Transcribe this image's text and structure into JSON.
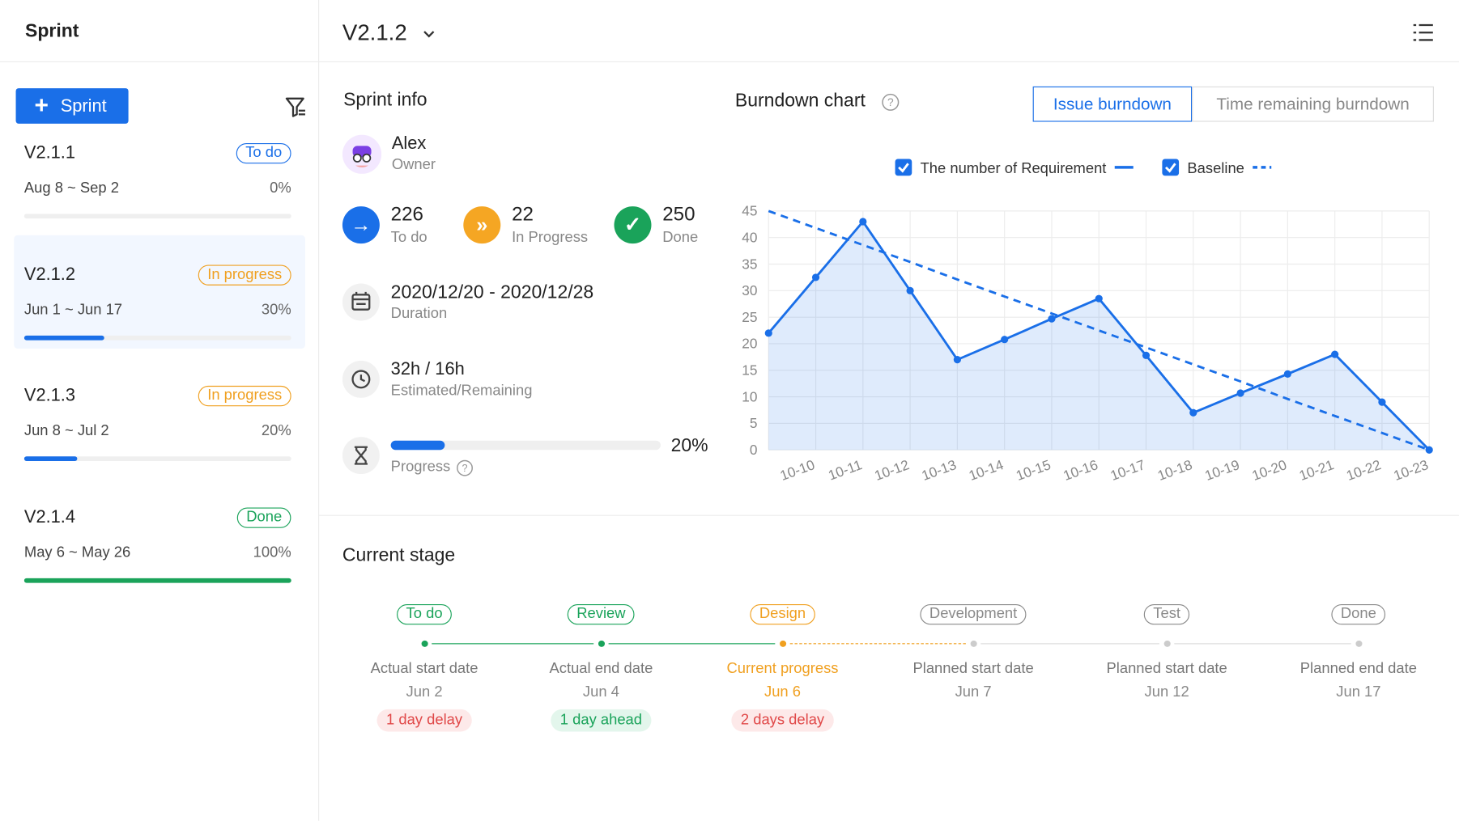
{
  "header": {
    "sidebar_title": "Sprint",
    "version": "V2.1.2"
  },
  "sidebar": {
    "new_button": "Sprint",
    "sprints": [
      {
        "name": "V2.1.1",
        "status": "To do",
        "status_color": "#1a6fe8",
        "dates": "Aug 8 ~ Sep 2",
        "progress": 0,
        "progress_label": "0%",
        "color": "#1a6fe8"
      },
      {
        "name": "V2.1.2",
        "status": "In progress",
        "status_color": "#f0a020",
        "dates": "Jun 1 ~ Jun 17",
        "progress": 30,
        "progress_label": "30%",
        "color": "#1a6fe8"
      },
      {
        "name": "V2.1.3",
        "status": "In progress",
        "status_color": "#f0a020",
        "dates": "Jun 8 ~ Jul 2",
        "progress": 20,
        "progress_label": "20%",
        "color": "#1a6fe8"
      },
      {
        "name": "V2.1.4",
        "status": "Done",
        "status_color": "#1aa35a",
        "dates": "May 6 ~ May 26",
        "progress": 100,
        "progress_label": "100%",
        "color": "#1aa35a"
      }
    ]
  },
  "sprint_info": {
    "title": "Sprint info",
    "owner_name": "Alex",
    "owner_role": "Owner",
    "stats": [
      {
        "count": 226,
        "label": "To do",
        "color": "#1a6fe8"
      },
      {
        "count": 22,
        "label": "In Progress",
        "color": "#f5a623"
      },
      {
        "count": 250,
        "label": "Done",
        "color": "#1aa35a"
      }
    ],
    "duration": "2020/12/20 - 2020/12/28",
    "duration_label": "Duration",
    "hours": "32h / 16h",
    "hours_label": "Estimated/Remaining",
    "progress": 20,
    "progress_label": "20%",
    "progress_text": "Progress"
  },
  "chart_data": {
    "type": "line",
    "title": "Burndown chart",
    "tabs": [
      "Issue burndown",
      "Time remaining burndown"
    ],
    "categories": [
      null,
      "10-10",
      "10-11",
      "10-12",
      "10-13",
      "10-14",
      "10-15",
      "10-16",
      "10-17",
      "10-18",
      "10-19",
      "10-20",
      "10-21",
      "10-22",
      "10-23"
    ],
    "series": [
      {
        "name": "The number of Requirement",
        "color": "#1a6fe8",
        "style": "solid",
        "area": true,
        "values": [
          22,
          32.5,
          43,
          30,
          17,
          20.8,
          24.7,
          28.5,
          17.8,
          7,
          10.7,
          14.3,
          18,
          9,
          0
        ]
      },
      {
        "name": "Baseline",
        "color": "#1a6fe8",
        "style": "dashed",
        "area": false,
        "values": [
          45,
          41.8,
          38.6,
          35.4,
          32.1,
          28.9,
          25.7,
          22.5,
          19.3,
          16.1,
          12.9,
          9.6,
          6.4,
          3.2,
          0
        ]
      }
    ],
    "ylim": [
      0,
      45
    ],
    "yticks": [
      0,
      5,
      10,
      15,
      20,
      25,
      30,
      35,
      40,
      45
    ],
    "grid": true,
    "legend": "top"
  },
  "current_stage": {
    "title": "Current stage",
    "stages": [
      {
        "status": "To do",
        "label": "Actual start date",
        "date": "Jun 2",
        "note": "1 day delay",
        "color": "#1aa35a",
        "note_color": "#e04848",
        "note_bg": "#fde9e9"
      },
      {
        "status": "Review",
        "label": "Actual end date",
        "date": "Jun 4",
        "note": "1 day ahead",
        "color": "#1aa35a",
        "note_color": "#1aa35a",
        "note_bg": "#e3f6ec"
      },
      {
        "status": "Design",
        "label": "Current progress",
        "date": "Jun 6",
        "note": "2 days delay",
        "color": "#f0a020",
        "note_color": "#e04848",
        "note_bg": "#fde9e9"
      },
      {
        "status": "Development",
        "label": "Planned start date",
        "date": "Jun 7",
        "color": "#8a8a8a"
      },
      {
        "status": "Test",
        "label": "Planned start date",
        "date": "Jun 12",
        "color": "#8a8a8a"
      },
      {
        "status": "Done",
        "label": "Planned end date",
        "date": "Jun 17",
        "color": "#8a8a8a"
      }
    ]
  }
}
